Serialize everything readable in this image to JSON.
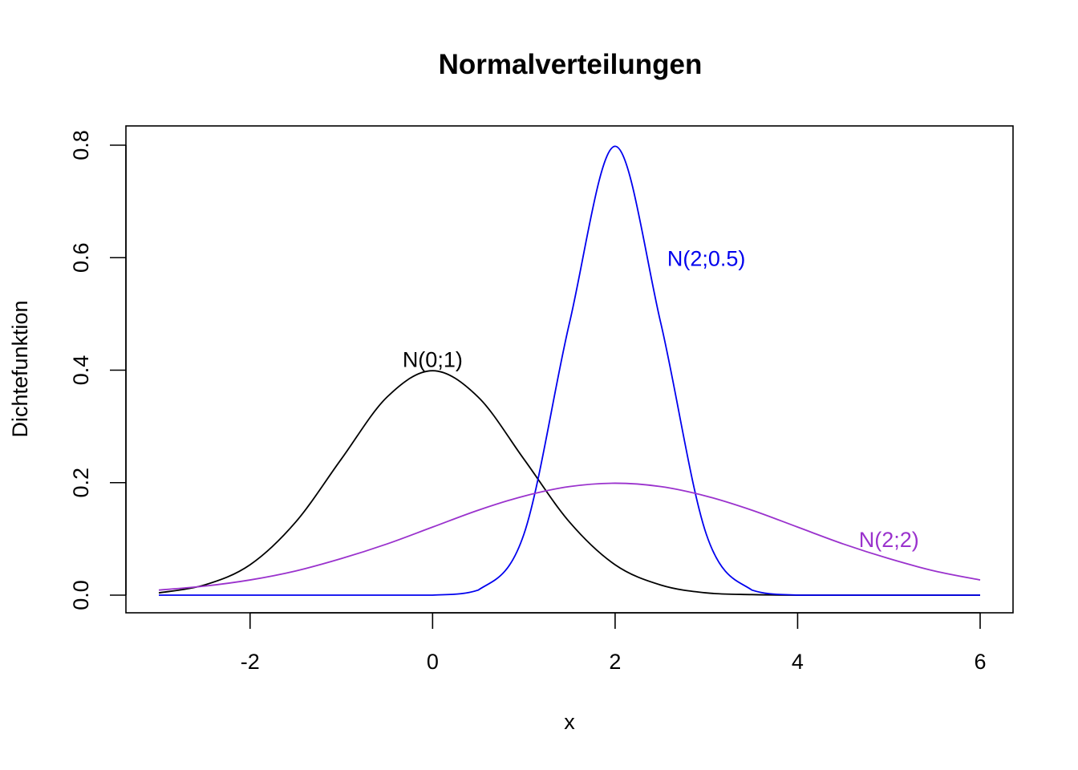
{
  "chart_data": {
    "type": "line",
    "title": "Normalverteilungen",
    "xlabel": "x",
    "ylabel": "Dichtefunktion",
    "xlim": [
      -3,
      6
    ],
    "ylim": [
      0,
      0.8
    ],
    "x_ticks": [
      -2,
      0,
      2,
      4,
      6
    ],
    "x_tick_labels": [
      "-2",
      "0",
      "2",
      "4",
      "6"
    ],
    "y_ticks": [
      0.0,
      0.2,
      0.4,
      0.6,
      0.8
    ],
    "y_tick_labels": [
      "0.0",
      "0.2",
      "0.4",
      "0.6",
      "0.8"
    ],
    "grid": false,
    "x": [
      -3.0,
      -2.5,
      -2.0,
      -1.5,
      -1.0,
      -0.5,
      0.0,
      0.5,
      1.0,
      1.5,
      2.0,
      2.5,
      3.0,
      3.5,
      4.0,
      4.5,
      5.0,
      5.5,
      6.0
    ],
    "series": [
      {
        "name": "N(0;1)",
        "color": "#000000",
        "values": [
          0.004,
          0.018,
          0.054,
          0.13,
          0.242,
          0.352,
          0.399,
          0.352,
          0.242,
          0.13,
          0.054,
          0.018,
          0.004,
          0.001,
          0.0,
          0.0,
          0.0,
          0.0,
          0.0
        ]
      },
      {
        "name": "N(2;0.5)",
        "color": "#0000ee",
        "values": [
          0.0,
          0.0,
          0.0,
          0.0,
          0.0,
          0.0,
          0.0,
          0.009,
          0.108,
          0.484,
          0.798,
          0.484,
          0.108,
          0.009,
          0.0,
          0.0,
          0.0,
          0.0,
          0.0
        ]
      },
      {
        "name": "N(2;2)",
        "color": "#9a32cd",
        "values": [
          0.009,
          0.016,
          0.027,
          0.043,
          0.065,
          0.091,
          0.121,
          0.151,
          0.176,
          0.193,
          0.199,
          0.193,
          0.176,
          0.151,
          0.121,
          0.091,
          0.065,
          0.043,
          0.027
        ]
      }
    ],
    "annotations": [
      {
        "text": "N(0;1)",
        "x": 0.0,
        "y": 0.42,
        "color": "#000000"
      },
      {
        "text": "N(2;0.5)",
        "x": 3.0,
        "y": 0.6,
        "color": "#0000ee"
      },
      {
        "text": "N(2;2)",
        "x": 5.0,
        "y": 0.1,
        "color": "#9a32cd"
      }
    ]
  }
}
